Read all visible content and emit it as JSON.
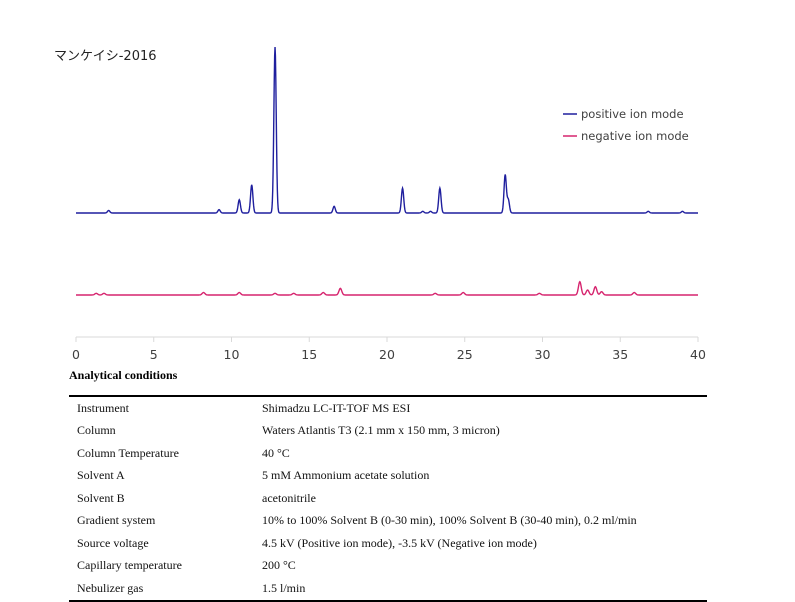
{
  "chart_data": {
    "type": "line",
    "title": "マンケイシ-2016",
    "xlim": [
      0,
      40
    ],
    "x_ticks": [
      "0",
      "5",
      "10",
      "15",
      "20",
      "25",
      "30",
      "35",
      "40"
    ],
    "grid": false,
    "legend_position": "top-right",
    "series": [
      {
        "name": "positive ion mode",
        "color": "#1f1f9e",
        "baseline": 0,
        "peaks": [
          {
            "x": 2.1,
            "y": 1.5
          },
          {
            "x": 9.2,
            "y": 2
          },
          {
            "x": 10.5,
            "y": 8
          },
          {
            "x": 11.3,
            "y": 17
          },
          {
            "x": 12.8,
            "y": 100
          },
          {
            "x": 16.6,
            "y": 4
          },
          {
            "x": 21.0,
            "y": 15
          },
          {
            "x": 22.3,
            "y": 1
          },
          {
            "x": 22.8,
            "y": 1
          },
          {
            "x": 23.4,
            "y": 15
          },
          {
            "x": 27.6,
            "y": 23
          },
          {
            "x": 27.8,
            "y": 8
          },
          {
            "x": 36.8,
            "y": 1
          },
          {
            "x": 39.0,
            "y": 1
          }
        ]
      },
      {
        "name": "negative ion mode",
        "color": "#d6246e",
        "baseline": 0,
        "peaks": [
          {
            "x": 1.3,
            "y": 1
          },
          {
            "x": 1.8,
            "y": 1
          },
          {
            "x": 8.2,
            "y": 1.5
          },
          {
            "x": 10.5,
            "y": 1.5
          },
          {
            "x": 12.8,
            "y": 1
          },
          {
            "x": 14.0,
            "y": 1
          },
          {
            "x": 15.9,
            "y": 1.5
          },
          {
            "x": 17.0,
            "y": 4
          },
          {
            "x": 23.1,
            "y": 1
          },
          {
            "x": 24.9,
            "y": 1.5
          },
          {
            "x": 29.8,
            "y": 1
          },
          {
            "x": 32.4,
            "y": 8
          },
          {
            "x": 32.9,
            "y": 3
          },
          {
            "x": 33.4,
            "y": 5
          },
          {
            "x": 33.8,
            "y": 2
          },
          {
            "x": 35.9,
            "y": 1.5
          }
        ]
      }
    ]
  },
  "conditions": {
    "heading": "Analytical conditions",
    "rows": [
      {
        "label": "Instrument",
        "value": "Shimadzu LC-IT-TOF MS ESI"
      },
      {
        "label": "Column",
        "value": "Waters Atlantis T3 (2.1 mm x 150 mm, 3 micron)"
      },
      {
        "label": "Column Temperature",
        "value": "40 °C"
      },
      {
        "label": "Solvent A",
        "value": "5 mM Ammonium acetate solution"
      },
      {
        "label": "Solvent B",
        "value": "acetonitrile"
      },
      {
        "label": "Gradient system",
        "value": "10% to 100% Solvent B (0-30 min), 100% Solvent B (30-40 min), 0.2 ml/min"
      },
      {
        "label": "Source voltage",
        "value": "4.5 kV (Positive ion mode), -3.5 kV (Negative ion mode)"
      },
      {
        "label": "Capillary temperature",
        "value": "200 °C"
      },
      {
        "label": "Nebulizer gas",
        "value": "1.5 l/min"
      }
    ]
  }
}
